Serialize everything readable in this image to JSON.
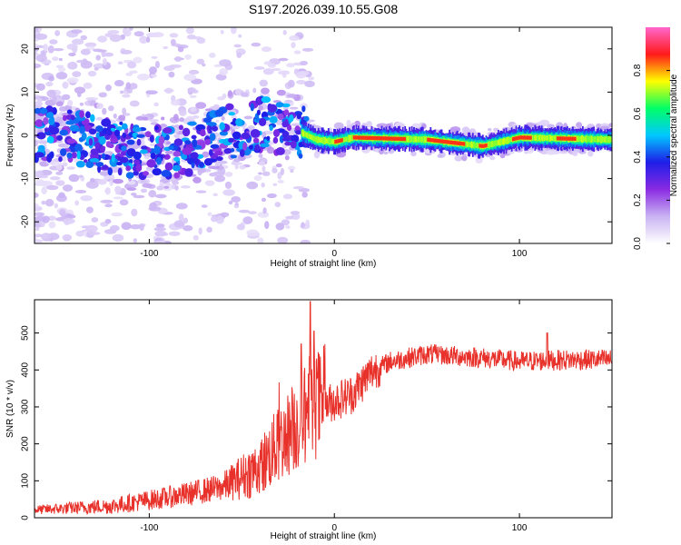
{
  "title": "S197.2026.039.10.55.G08",
  "chart_data": [
    {
      "type": "heatmap",
      "xlabel": "Height of straight line (km)",
      "ylabel": "Frequency (Hz)",
      "xlim": [
        -162,
        150
      ],
      "ylim": [
        -25,
        25
      ],
      "xticks": [
        -100,
        0,
        100
      ],
      "yticks": [
        -20,
        -10,
        0,
        10,
        20
      ],
      "colorbar": {
        "label": "Normalized spectral amplitude",
        "range": [
          0,
          1
        ],
        "ticks": [
          "0.0",
          "0.2",
          "0.4",
          "0.6",
          "0.8"
        ],
        "tick_values": [
          0.0,
          0.2,
          0.4,
          0.6,
          0.8
        ],
        "colors": [
          "#ffffff",
          "#c9b3f3",
          "#8a2be2",
          "#1e1ee8",
          "#00c8ff",
          "#00ff66",
          "#ffff00",
          "#ff1a1a",
          "#ff66cc"
        ]
      },
      "ridge_center_hz": [
        {
          "x": -162,
          "y": 0.5
        },
        {
          "x": -140,
          "y": -0.5
        },
        {
          "x": -120,
          "y": -2.5
        },
        {
          "x": -100,
          "y": -4.5
        },
        {
          "x": -80,
          "y": -3.0
        },
        {
          "x": -60,
          "y": 0.5
        },
        {
          "x": -40,
          "y": 2.5
        },
        {
          "x": -20,
          "y": 1.0
        },
        {
          "x": -10,
          "y": -1.0
        },
        {
          "x": 0,
          "y": -1.5
        },
        {
          "x": 10,
          "y": -0.5
        },
        {
          "x": 50,
          "y": -1.0
        },
        {
          "x": 80,
          "y": -2.5
        },
        {
          "x": 100,
          "y": -0.5
        },
        {
          "x": 150,
          "y": -1.0
        }
      ]
    },
    {
      "type": "line",
      "xlabel": "Height of straight line (km)",
      "ylabel": "SNR (10 * v/v)",
      "xlim": [
        -162,
        150
      ],
      "ylim": [
        0,
        590
      ],
      "xticks": [
        -100,
        0,
        100
      ],
      "yticks": [
        0,
        100,
        200,
        300,
        400,
        500
      ],
      "color": "#e8312a",
      "trend": [
        {
          "x": -162,
          "y": 20
        },
        {
          "x": -140,
          "y": 25
        },
        {
          "x": -120,
          "y": 30
        },
        {
          "x": -100,
          "y": 45
        },
        {
          "x": -80,
          "y": 60
        },
        {
          "x": -60,
          "y": 80
        },
        {
          "x": -40,
          "y": 130
        },
        {
          "x": -30,
          "y": 190
        },
        {
          "x": -20,
          "y": 240
        },
        {
          "x": -10,
          "y": 290
        },
        {
          "x": 0,
          "y": 310
        },
        {
          "x": 10,
          "y": 330
        },
        {
          "x": 20,
          "y": 390
        },
        {
          "x": 30,
          "y": 420
        },
        {
          "x": 50,
          "y": 440
        },
        {
          "x": 80,
          "y": 430
        },
        {
          "x": 100,
          "y": 420
        },
        {
          "x": 130,
          "y": 425
        },
        {
          "x": 150,
          "y": 425
        }
      ],
      "peaks": [
        {
          "x": -13,
          "y": 585
        },
        {
          "x": -11,
          "y": 505
        },
        {
          "x": -18,
          "y": 470
        },
        {
          "x": 57,
          "y": 450
        },
        {
          "x": 115,
          "y": 500
        }
      ]
    }
  ]
}
